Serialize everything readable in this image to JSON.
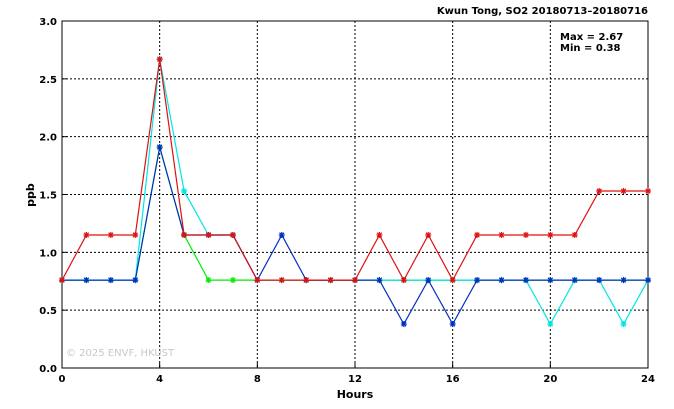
{
  "chart_data": {
    "type": "line",
    "title": "Kwun Tong, SO2 20180713–20180716",
    "xlabel": "Hours",
    "ylabel": "ppb",
    "xlim": [
      0,
      24
    ],
    "ylim": [
      0,
      3.0
    ],
    "x_ticks": [
      "0",
      "4",
      "8",
      "12",
      "16",
      "20",
      "24"
    ],
    "y_ticks": [
      "0.0",
      "0.5",
      "1.0",
      "1.5",
      "2.0",
      "2.5",
      "3.0"
    ],
    "grid": true,
    "annotations": {
      "max_text": "Max = 2.67",
      "min_text": "Min = 0.38"
    },
    "watermark": "© 2025  ENVF, HKUST",
    "x": [
      0,
      1,
      2,
      3,
      4,
      5,
      6,
      7,
      8,
      9,
      10,
      11,
      12,
      13,
      14,
      15,
      16,
      17,
      18,
      19,
      20,
      21,
      22,
      23,
      24
    ],
    "series": [
      {
        "color": "#00ee00",
        "values": [
          0.76,
          0.76,
          0.76,
          0.76,
          1.91,
          1.15,
          0.76,
          0.76,
          0.76,
          0.76,
          0.76,
          0.76,
          0.76,
          0.76,
          0.76,
          0.76,
          0.76,
          0.76,
          0.76,
          0.76,
          0.76,
          0.76,
          0.76,
          0.76,
          0.76
        ]
      },
      {
        "color": "#00e5e5",
        "values": [
          0.76,
          0.76,
          0.76,
          0.76,
          2.67,
          1.53,
          1.15,
          1.15,
          0.76,
          0.76,
          0.76,
          0.76,
          0.76,
          0.76,
          0.76,
          0.76,
          0.76,
          0.76,
          0.76,
          0.76,
          0.38,
          0.76,
          0.76,
          0.38,
          0.76
        ]
      },
      {
        "color": "#0030c0",
        "values": [
          0.76,
          0.76,
          0.76,
          0.76,
          1.91,
          1.15,
          1.15,
          1.15,
          0.76,
          1.15,
          0.76,
          0.76,
          0.76,
          0.76,
          0.38,
          0.76,
          0.38,
          0.76,
          0.76,
          0.76,
          0.76,
          0.76,
          0.76,
          0.76,
          0.76
        ]
      },
      {
        "color": "#e01010",
        "values": [
          0.76,
          1.15,
          1.15,
          1.15,
          2.67,
          1.15,
          1.15,
          1.15,
          0.76,
          0.76,
          0.76,
          0.76,
          0.76,
          1.15,
          0.76,
          1.15,
          0.76,
          1.15,
          1.15,
          1.15,
          1.15,
          1.15,
          1.53,
          1.53,
          1.53
        ]
      }
    ]
  }
}
